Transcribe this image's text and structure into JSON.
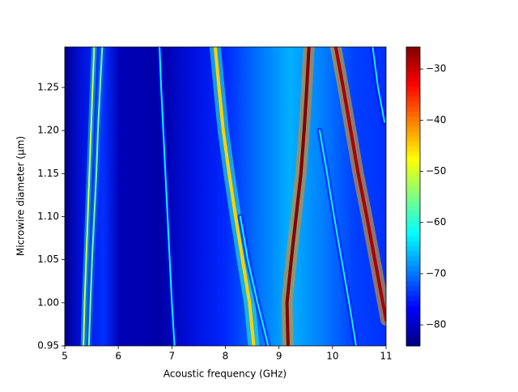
{
  "chart_data": {
    "type": "heatmap",
    "xlabel": "Acoustic frequency (GHz)",
    "ylabel": "Microwire diameter (μm)",
    "xlim": [
      5,
      11
    ],
    "xticks": [
      5,
      6,
      7,
      8,
      9,
      10,
      11
    ],
    "ylim": [
      0.95,
      1.297
    ],
    "yticks": [
      0.95,
      {
        "value": 1,
        "label": "1.00"
      },
      1.05,
      {
        "value": 1.1,
        "label": "1.10"
      },
      1.15,
      {
        "value": 1.2,
        "label": "1.20"
      },
      1.25
    ],
    "clim": [
      -84.1,
      -25.7
    ],
    "colorbar_ticks": [
      {
        "value": -30,
        "label": "−30"
      },
      {
        "value": -40,
        "label": "−40"
      },
      {
        "value": -50,
        "label": "−50"
      },
      {
        "value": -60,
        "label": "−60"
      },
      {
        "value": -70,
        "label": "−70"
      },
      {
        "value": -80,
        "label": "−80"
      }
    ],
    "colormap": "jet",
    "series": [
      {
        "x": [
          9.17,
          9.15,
          9.23,
          9.32,
          9.41,
          9.47,
          9.52,
          9.56
        ],
        "values": [
          0.95,
          1.0,
          1.05,
          1.1,
          1.15,
          1.2,
          1.25,
          1.297
        ],
        "level": -26
      },
      {
        "x": [
          11.0,
          10.94,
          10.79,
          10.64,
          10.48,
          10.34,
          10.2,
          10.06
        ],
        "values": [
          0.98,
          1.0,
          1.05,
          1.1,
          1.15,
          1.2,
          1.25,
          1.297
        ],
        "level": -28
      },
      {
        "x": [
          5.35,
          5.37,
          5.4,
          5.43,
          5.46,
          5.49,
          5.52,
          5.55
        ],
        "values": [
          0.95,
          1.0,
          1.05,
          1.1,
          1.15,
          1.2,
          1.25,
          1.297
        ],
        "level": -50
      },
      {
        "x": [
          5.45,
          5.48,
          5.51,
          5.55,
          5.59,
          5.62,
          5.66,
          5.7
        ],
        "values": [
          0.95,
          1.0,
          1.05,
          1.1,
          1.15,
          1.2,
          1.25,
          1.297
        ],
        "level": -55
      },
      {
        "x": [
          7.05,
          7.0,
          6.96,
          6.92,
          6.88,
          6.84,
          6.8,
          6.77
        ],
        "values": [
          0.95,
          1.0,
          1.05,
          1.1,
          1.15,
          1.2,
          1.25,
          1.297
        ],
        "level": -62
      },
      {
        "x": [
          8.53,
          8.45,
          8.32,
          8.19,
          8.07,
          7.96,
          7.88,
          7.81
        ],
        "values": [
          0.95,
          1.0,
          1.05,
          1.1,
          1.15,
          1.2,
          1.25,
          1.297
        ],
        "level": -45
      },
      {
        "x": [
          8.8,
          8.6,
          8.42,
          8.28
        ],
        "values": [
          0.95,
          1.0,
          1.05,
          1.1
        ],
        "level": -62
      },
      {
        "x": [
          10.44,
          10.31,
          10.17,
          10.03,
          9.9,
          9.76
        ],
        "values": [
          0.95,
          1.0,
          1.05,
          1.1,
          1.15,
          1.2
        ],
        "level": -62
      },
      {
        "x": [
          10.97,
          10.85,
          10.75
        ],
        "values": [
          1.21,
          1.25,
          1.297
        ],
        "level": -62
      }
    ]
  }
}
